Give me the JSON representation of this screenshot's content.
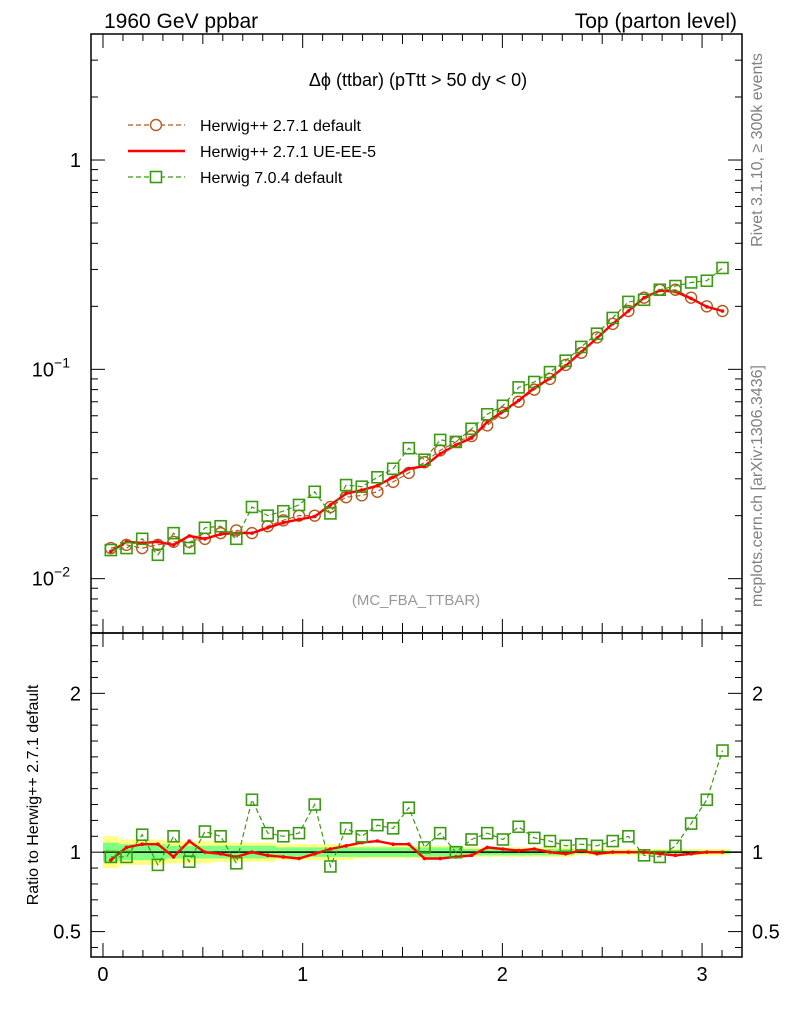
{
  "header": {
    "left": "1960 GeV ppbar",
    "right": "Top (parton level)"
  },
  "side_labels": {
    "rivet": "Rivet 3.1.10, ≥ 300k events",
    "mcplots": "mcplots.cern.ch [arXiv:1306.3436]"
  },
  "chart_data": [
    {
      "type": "line",
      "title": "Δϕ (ttbar) (pTtt > 50 dy < 0)",
      "annotation": "(MC_FBA_TTBAR)",
      "yscale": "log",
      "xlim": [
        -0.06,
        3.2
      ],
      "ylim": [
        0.0055,
        4.0
      ],
      "yticks": [
        {
          "value": 0.01,
          "label": "10",
          "exp": "−2"
        },
        {
          "value": 0.1,
          "label": "10",
          "exp": "−1"
        },
        {
          "value": 1,
          "label": "1",
          "exp": ""
        }
      ],
      "legend_position": "top-left",
      "x": [
        0.0393,
        0.1178,
        0.1963,
        0.2749,
        0.3534,
        0.432,
        0.5105,
        0.589,
        0.6676,
        0.7461,
        0.8247,
        0.9032,
        0.9817,
        1.0603,
        1.1388,
        1.2174,
        1.2959,
        1.3744,
        1.453,
        1.5315,
        1.6101,
        1.6886,
        1.7671,
        1.8457,
        1.9242,
        2.0028,
        2.0813,
        2.1598,
        2.2384,
        2.3169,
        2.3955,
        2.474,
        2.5525,
        2.6311,
        2.7096,
        2.7882,
        2.8667,
        2.9452,
        3.0238,
        3.1023
      ],
      "series": [
        {
          "name": "Herwig++ 2.7.1 default",
          "color": "#b35a1f",
          "style": "dashed",
          "marker": "circle",
          "values": [
            0.014,
            0.0145,
            0.014,
            0.0145,
            0.015,
            0.015,
            0.0155,
            0.0165,
            0.017,
            0.0165,
            0.0178,
            0.019,
            0.02,
            0.02,
            0.022,
            0.0245,
            0.025,
            0.026,
            0.029,
            0.032,
            0.036,
            0.041,
            0.045,
            0.048,
            0.054,
            0.062,
            0.07,
            0.08,
            0.09,
            0.105,
            0.12,
            0.142,
            0.165,
            0.19,
            0.22,
            0.24,
            0.24,
            0.22,
            0.2,
            0.19
          ]
        },
        {
          "name": "Herwig++ 2.7.1 UE-EE-5",
          "color": "#ff0000",
          "style": "solid",
          "marker": "none",
          "values": [
            0.0135,
            0.015,
            0.0148,
            0.015,
            0.0145,
            0.016,
            0.0155,
            0.0163,
            0.0165,
            0.0165,
            0.0175,
            0.0185,
            0.0192,
            0.0198,
            0.0225,
            0.0255,
            0.0265,
            0.0278,
            0.0305,
            0.0335,
            0.0345,
            0.0395,
            0.0435,
            0.047,
            0.056,
            0.063,
            0.071,
            0.0815,
            0.0905,
            0.104,
            0.121,
            0.141,
            0.165,
            0.19,
            0.22,
            0.238,
            0.235,
            0.218,
            0.199,
            0.19
          ]
        },
        {
          "name": "Herwig 7.0.4 default",
          "color": "#3b9a10",
          "style": "dashed",
          "marker": "square",
          "values": [
            0.0137,
            0.014,
            0.0155,
            0.013,
            0.0165,
            0.014,
            0.0175,
            0.0178,
            0.0155,
            0.022,
            0.02,
            0.021,
            0.0225,
            0.026,
            0.0205,
            0.028,
            0.0275,
            0.0305,
            0.0335,
            0.042,
            0.037,
            0.046,
            0.045,
            0.052,
            0.061,
            0.067,
            0.082,
            0.087,
            0.097,
            0.11,
            0.128,
            0.148,
            0.176,
            0.21,
            0.215,
            0.24,
            0.25,
            0.26,
            0.265,
            0.305
          ]
        }
      ]
    },
    {
      "type": "line",
      "ylabel": "Ratio to Herwig++ 2.7.1 default",
      "xlim": [
        -0.06,
        3.2
      ],
      "ylim": [
        0.34,
        2.38
      ],
      "yticks": [
        0.5,
        1,
        2
      ],
      "xticks": [
        0,
        1,
        2,
        3
      ],
      "x": [
        0.0393,
        0.1178,
        0.1963,
        0.2749,
        0.3534,
        0.432,
        0.5105,
        0.589,
        0.6676,
        0.7461,
        0.8247,
        0.9032,
        0.9817,
        1.0603,
        1.1388,
        1.2174,
        1.2959,
        1.3744,
        1.453,
        1.5315,
        1.6101,
        1.6886,
        1.7671,
        1.8457,
        1.9242,
        2.0028,
        2.0813,
        2.1598,
        2.2384,
        2.3169,
        2.3955,
        2.474,
        2.5525,
        2.6311,
        2.7096,
        2.7882,
        2.8667,
        2.9452,
        3.0238,
        3.1023
      ],
      "band": {
        "outer_color": "#ffff80",
        "inner_color": "#80ff80",
        "outer_upper": [
          1.1,
          1.08,
          1.08,
          1.08,
          1.07,
          1.07,
          1.07,
          1.06,
          1.06,
          1.06,
          1.06,
          1.05,
          1.05,
          1.05,
          1.05,
          1.05,
          1.04,
          1.04,
          1.04,
          1.04,
          1.04,
          1.04,
          1.04,
          1.03,
          1.03,
          1.03,
          1.03,
          1.03,
          1.03,
          1.03,
          1.02,
          1.02,
          1.02,
          1.02,
          1.02,
          1.02,
          1.02,
          1.02,
          1.02,
          1.02
        ],
        "outer_lower": [
          0.9,
          0.92,
          0.92,
          0.92,
          0.93,
          0.93,
          0.93,
          0.94,
          0.94,
          0.94,
          0.94,
          0.95,
          0.95,
          0.95,
          0.95,
          0.95,
          0.96,
          0.96,
          0.96,
          0.96,
          0.96,
          0.96,
          0.96,
          0.97,
          0.97,
          0.97,
          0.97,
          0.97,
          0.97,
          0.97,
          0.98,
          0.98,
          0.98,
          0.98,
          0.98,
          0.98,
          0.98,
          0.98,
          0.98,
          0.98
        ],
        "inner_upper": [
          1.06,
          1.05,
          1.05,
          1.05,
          1.04,
          1.04,
          1.04,
          1.04,
          1.04,
          1.04,
          1.04,
          1.03,
          1.03,
          1.03,
          1.03,
          1.03,
          1.03,
          1.03,
          1.03,
          1.03,
          1.03,
          1.03,
          1.03,
          1.02,
          1.02,
          1.02,
          1.02,
          1.02,
          1.02,
          1.02,
          1.01,
          1.01,
          1.01,
          1.01,
          1.01,
          1.01,
          1.01,
          1.01,
          1.01,
          1.01
        ],
        "inner_lower": [
          0.94,
          0.95,
          0.95,
          0.95,
          0.96,
          0.96,
          0.96,
          0.96,
          0.96,
          0.96,
          0.96,
          0.97,
          0.97,
          0.97,
          0.97,
          0.97,
          0.97,
          0.97,
          0.97,
          0.97,
          0.97,
          0.97,
          0.97,
          0.98,
          0.98,
          0.98,
          0.98,
          0.98,
          0.98,
          0.98,
          0.99,
          0.99,
          0.99,
          0.99,
          0.99,
          0.99,
          0.99,
          0.99,
          0.99,
          0.99
        ]
      },
      "series": [
        {
          "name": "Herwig++ 2.7.1 UE-EE-5",
          "color": "#ff0000",
          "style": "solid",
          "marker": "none",
          "values": [
            0.95,
            1.03,
            1.05,
            1.05,
            0.97,
            1.07,
            1.0,
            0.99,
            0.97,
            1.0,
            0.98,
            0.97,
            0.96,
            0.99,
            1.02,
            1.04,
            1.06,
            1.07,
            1.05,
            1.05,
            0.96,
            0.96,
            0.97,
            0.98,
            1.03,
            1.02,
            1.01,
            1.02,
            1.0,
            0.99,
            1.01,
            0.99,
            1.0,
            1.0,
            1.0,
            0.99,
            0.98,
            0.99,
            1.0,
            1.0
          ]
        },
        {
          "name": "Herwig 7.0.4 default",
          "color": "#3b9a10",
          "style": "dashed",
          "marker": "square",
          "values": [
            0.97,
            0.97,
            1.11,
            0.92,
            1.1,
            0.94,
            1.13,
            1.1,
            0.93,
            1.33,
            1.12,
            1.1,
            1.12,
            1.3,
            0.91,
            1.15,
            1.1,
            1.17,
            1.15,
            1.28,
            1.03,
            1.12,
            1.0,
            1.08,
            1.12,
            1.08,
            1.16,
            1.09,
            1.07,
            1.04,
            1.05,
            1.04,
            1.07,
            1.1,
            0.98,
            0.97,
            1.04,
            1.18,
            1.33,
            1.64
          ]
        }
      ]
    }
  ]
}
